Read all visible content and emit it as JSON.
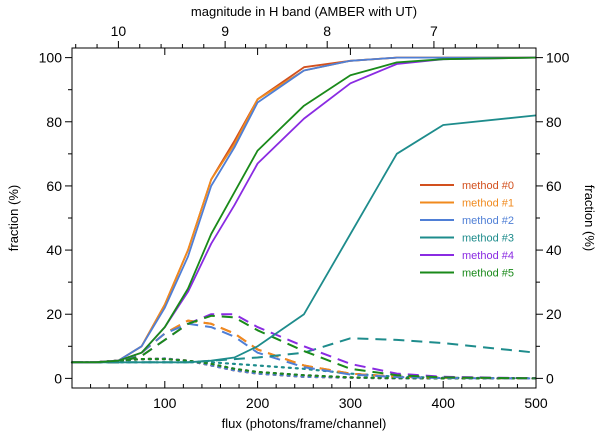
{
  "chart_data": {
    "type": "line",
    "xlabel": "flux (photons/frame/channel)",
    "ylabel": "fraction (%)",
    "ylabel_right": "fraction (%)",
    "x2label": "magnitude in H band (AMBER with UT)",
    "xlim": [
      0,
      500
    ],
    "ylim": [
      -3,
      103
    ],
    "x_ticks": [
      100,
      200,
      300,
      400,
      500
    ],
    "y_ticks": [
      0,
      20,
      40,
      60,
      80,
      100
    ],
    "top_ticks": [
      {
        "label": "10",
        "flux": 50
      },
      {
        "label": "9",
        "flux": 165
      },
      {
        "label": "8",
        "flux": 275
      },
      {
        "label": "7",
        "flux": 390
      }
    ],
    "grid": false,
    "legend_position": "center-right",
    "series": [
      {
        "name": "method #0",
        "color": "#d2501e",
        "solid": {
          "x": [
            0,
            25,
            50,
            75,
            100,
            125,
            150,
            175,
            200,
            250,
            300,
            350,
            400,
            500
          ],
          "y": [
            5,
            5,
            5.5,
            10,
            23,
            40,
            62,
            74,
            87,
            97,
            99,
            100,
            100,
            100
          ]
        },
        "dashed": {
          "x": [
            0,
            25,
            50,
            75,
            100,
            125,
            150,
            175,
            200,
            250,
            300,
            350,
            400,
            500
          ],
          "y": [
            5,
            5,
            5,
            8,
            14,
            18,
            17,
            14,
            9,
            4,
            1.5,
            0.5,
            0.2,
            0
          ]
        },
        "dotted": {
          "x": [
            0,
            25,
            50,
            75,
            100,
            125,
            150,
            175,
            200,
            250,
            300,
            350,
            400,
            500
          ],
          "y": [
            5,
            5,
            5.5,
            6,
            6.2,
            5.5,
            4,
            2.5,
            1.5,
            0.5,
            0.2,
            0,
            0,
            0
          ]
        }
      },
      {
        "name": "method #1",
        "color": "#f08a1e",
        "solid": {
          "x": [
            0,
            25,
            50,
            75,
            100,
            125,
            150,
            175,
            200,
            250,
            300,
            350,
            400,
            500
          ],
          "y": [
            5,
            5,
            5.5,
            10,
            23,
            40,
            62,
            73,
            87,
            96,
            99,
            100,
            100,
            100
          ]
        },
        "dashed": {
          "x": [
            0,
            25,
            50,
            75,
            100,
            125,
            150,
            175,
            200,
            250,
            300,
            350,
            400,
            500
          ],
          "y": [
            5,
            5,
            5,
            8,
            14,
            18,
            17,
            14,
            9,
            4,
            1.5,
            0.5,
            0.2,
            0
          ]
        },
        "dotted": {
          "x": [
            0,
            25,
            50,
            75,
            100,
            125,
            150,
            175,
            200,
            250,
            300,
            350,
            400,
            500
          ],
          "y": [
            5,
            5,
            5.5,
            6,
            6.2,
            5.5,
            4,
            2.5,
            1.5,
            0.5,
            0.2,
            0,
            0,
            0
          ]
        }
      },
      {
        "name": "method #2",
        "color": "#4f7fd6",
        "solid": {
          "x": [
            0,
            25,
            50,
            75,
            100,
            125,
            150,
            175,
            200,
            250,
            300,
            350,
            400,
            500
          ],
          "y": [
            5,
            5,
            5.5,
            10,
            22,
            38,
            60,
            72,
            86,
            96,
            99,
            100,
            100,
            100
          ]
        },
        "dashed": {
          "x": [
            0,
            25,
            50,
            75,
            100,
            125,
            150,
            175,
            200,
            250,
            300,
            350,
            400,
            500
          ],
          "y": [
            5,
            5,
            5,
            8,
            14,
            17,
            16,
            13,
            8,
            3.5,
            1.2,
            0.4,
            0.1,
            0
          ]
        },
        "dotted": {
          "x": [
            0,
            25,
            50,
            75,
            100,
            125,
            150,
            175,
            200,
            250,
            300,
            350,
            400,
            500
          ],
          "y": [
            5,
            5,
            5.5,
            6,
            6.2,
            5.5,
            4,
            2.5,
            1.5,
            0.5,
            0.2,
            0,
            0,
            0
          ]
        }
      },
      {
        "name": "method #3",
        "color": "#1e8c8c",
        "solid": {
          "x": [
            0,
            25,
            50,
            75,
            100,
            125,
            150,
            175,
            200,
            250,
            300,
            350,
            400,
            500
          ],
          "y": [
            5,
            5,
            5,
            5,
            5,
            5,
            5.5,
            6.5,
            10,
            20,
            45,
            70,
            79,
            82
          ]
        },
        "dashed": {
          "x": [
            0,
            25,
            50,
            75,
            100,
            125,
            150,
            175,
            200,
            250,
            300,
            350,
            400,
            500
          ],
          "y": [
            5,
            5,
            5,
            5,
            5,
            5,
            5.5,
            6,
            6.5,
            8,
            12.5,
            12,
            11,
            8
          ]
        },
        "dotted": {
          "x": [
            0,
            25,
            50,
            75,
            100,
            125,
            150,
            175,
            200,
            250,
            300,
            350,
            400,
            500
          ],
          "y": [
            5,
            5,
            5,
            5,
            5,
            5,
            5,
            4.5,
            4,
            3,
            1.5,
            0.5,
            0.2,
            0
          ]
        }
      },
      {
        "name": "method #4",
        "color": "#8a2be2",
        "solid": {
          "x": [
            0,
            25,
            50,
            75,
            100,
            125,
            150,
            175,
            200,
            250,
            300,
            350,
            400,
            500
          ],
          "y": [
            5,
            5,
            5.5,
            8,
            16,
            27,
            42,
            54,
            67,
            81,
            92,
            98,
            99.5,
            100
          ]
        },
        "dashed": {
          "x": [
            0,
            25,
            50,
            75,
            100,
            125,
            150,
            175,
            200,
            250,
            300,
            350,
            400,
            500
          ],
          "y": [
            5,
            5,
            5,
            7,
            12,
            17,
            20,
            20,
            16,
            10,
            4.5,
            1.5,
            0.5,
            0
          ]
        },
        "dotted": {
          "x": [
            0,
            25,
            50,
            75,
            100,
            125,
            150,
            175,
            200,
            250,
            300,
            350,
            400,
            500
          ],
          "y": [
            5,
            5,
            5.5,
            6,
            6,
            5.5,
            4.5,
            3,
            2,
            1,
            0.3,
            0.1,
            0,
            0
          ]
        }
      },
      {
        "name": "method #5",
        "color": "#1a8a1a",
        "solid": {
          "x": [
            0,
            25,
            50,
            75,
            100,
            125,
            150,
            175,
            200,
            250,
            300,
            350,
            400,
            500
          ],
          "y": [
            5,
            5,
            5.5,
            8,
            16,
            28,
            45,
            58,
            71,
            85,
            94.5,
            98.5,
            99.5,
            100
          ]
        },
        "dashed": {
          "x": [
            0,
            25,
            50,
            75,
            100,
            125,
            150,
            175,
            200,
            250,
            300,
            350,
            400,
            500
          ],
          "y": [
            5,
            5,
            5,
            7,
            12,
            17,
            19.5,
            19,
            15,
            8.5,
            3,
            1,
            0.3,
            0
          ]
        },
        "dotted": {
          "x": [
            0,
            25,
            50,
            75,
            100,
            125,
            150,
            175,
            200,
            250,
            300,
            350,
            400,
            500
          ],
          "y": [
            5,
            5,
            5.5,
            6,
            6,
            5.5,
            4.5,
            3,
            2,
            1,
            0.3,
            0.1,
            0,
            0
          ]
        }
      }
    ]
  }
}
